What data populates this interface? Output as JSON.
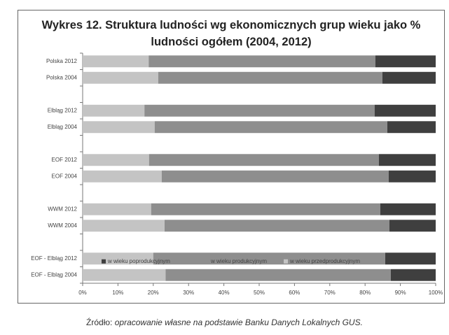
{
  "chart_data": {
    "type": "stacked_bar_horizontal",
    "title": "Wykres 12. Struktura ludności wg ekonomicznych grup wieku jako % ludności ogółem (2004, 2012)",
    "categories": [
      "Polska 2012",
      "Polska 2004",
      null,
      "Elbląg 2012",
      "Elbląg 2004",
      null,
      "EOF 2012",
      "EOF 2004",
      null,
      "WWM 2012",
      "WWM 2004",
      null,
      "EOF - Elbląg 2012",
      "EOF - Elbląg 2004"
    ],
    "series": [
      {
        "name": "w wieku poprodukcyjnym",
        "color": "#3f3f3f",
        "values": [
          17.1,
          15.1,
          null,
          17.3,
          13.7,
          null,
          16.1,
          13.3,
          null,
          15.7,
          13.1,
          null,
          14.3,
          12.7
        ]
      },
      {
        "name": "w wieku produkcyjnym",
        "color": "#8e8e8e",
        "values": [
          64.2,
          63.5,
          null,
          65.2,
          65.9,
          null,
          65.1,
          64.3,
          null,
          64.9,
          63.7,
          null,
          65.7,
          63.8
        ]
      },
      {
        "name": "w wieku przedprodukcyjnym",
        "color": "#c4c4c4",
        "values": [
          18.7,
          21.4,
          null,
          17.5,
          20.4,
          null,
          18.8,
          22.4,
          null,
          19.4,
          23.2,
          null,
          20.0,
          23.5
        ]
      }
    ],
    "xlim": [
      0,
      100
    ],
    "xticks": [
      {
        "value": 0,
        "label": "0%"
      },
      {
        "value": 10,
        "label": "10%"
      },
      {
        "value": 20,
        "label": "20%"
      },
      {
        "value": 30,
        "label": "30%"
      },
      {
        "value": 40,
        "label": "40%"
      },
      {
        "value": 50,
        "label": "50%"
      },
      {
        "value": 60,
        "label": "60%"
      },
      {
        "value": 70,
        "label": "70%"
      },
      {
        "value": 80,
        "label": "80%"
      },
      {
        "value": 90,
        "label": "90%"
      },
      {
        "value": 100,
        "label": "100%"
      }
    ],
    "grid": false,
    "legend": "bottom",
    "source_label": "Źródło:",
    "source": "opracowanie własne na podstawie Banku Danych Lokalnych GUS."
  }
}
